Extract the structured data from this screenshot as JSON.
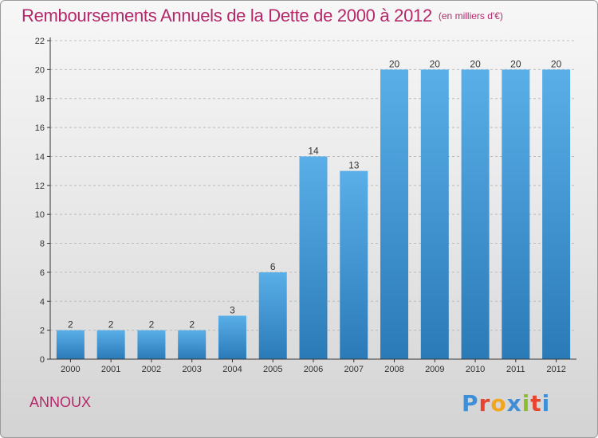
{
  "header": {
    "title": "Remboursements Annuels de la Dette de 2000 à 2012",
    "unit": "(en milliers d'€)"
  },
  "footer": {
    "commune": "ANNOUX",
    "logo_text": "Proxiti",
    "logo_colors": [
      "#3f8fd8",
      "#e8442f",
      "#f2a61f",
      "#3f8fd8",
      "#8dbf2b",
      "#e8442f",
      "#3f8fd8"
    ]
  },
  "colors": {
    "bar_top": "#5aafe8",
    "bar_bottom": "#2a7ab8",
    "title": "#b4286a",
    "grid": "#bbbbbb"
  },
  "chart_data": {
    "type": "bar",
    "title": "Remboursements Annuels de la Dette de 2000 à 2012",
    "subtitle": "(en milliers d'€)",
    "categories": [
      "2000",
      "2001",
      "2002",
      "2003",
      "2004",
      "2005",
      "2006",
      "2007",
      "2008",
      "2009",
      "2010",
      "2011",
      "2012"
    ],
    "values": [
      2,
      2,
      2,
      2,
      3,
      6,
      14,
      13,
      20,
      20,
      20,
      20,
      20
    ],
    "data_labels": [
      "2",
      "2",
      "2",
      "2",
      "3",
      "6",
      "14",
      "13",
      "20",
      "20",
      "20",
      "20",
      "20"
    ],
    "ylim": [
      0,
      22
    ],
    "yticks": [
      0,
      2,
      4,
      6,
      8,
      10,
      12,
      14,
      16,
      18,
      20,
      22
    ],
    "xlabel": "",
    "ylabel": "",
    "grid": true
  }
}
